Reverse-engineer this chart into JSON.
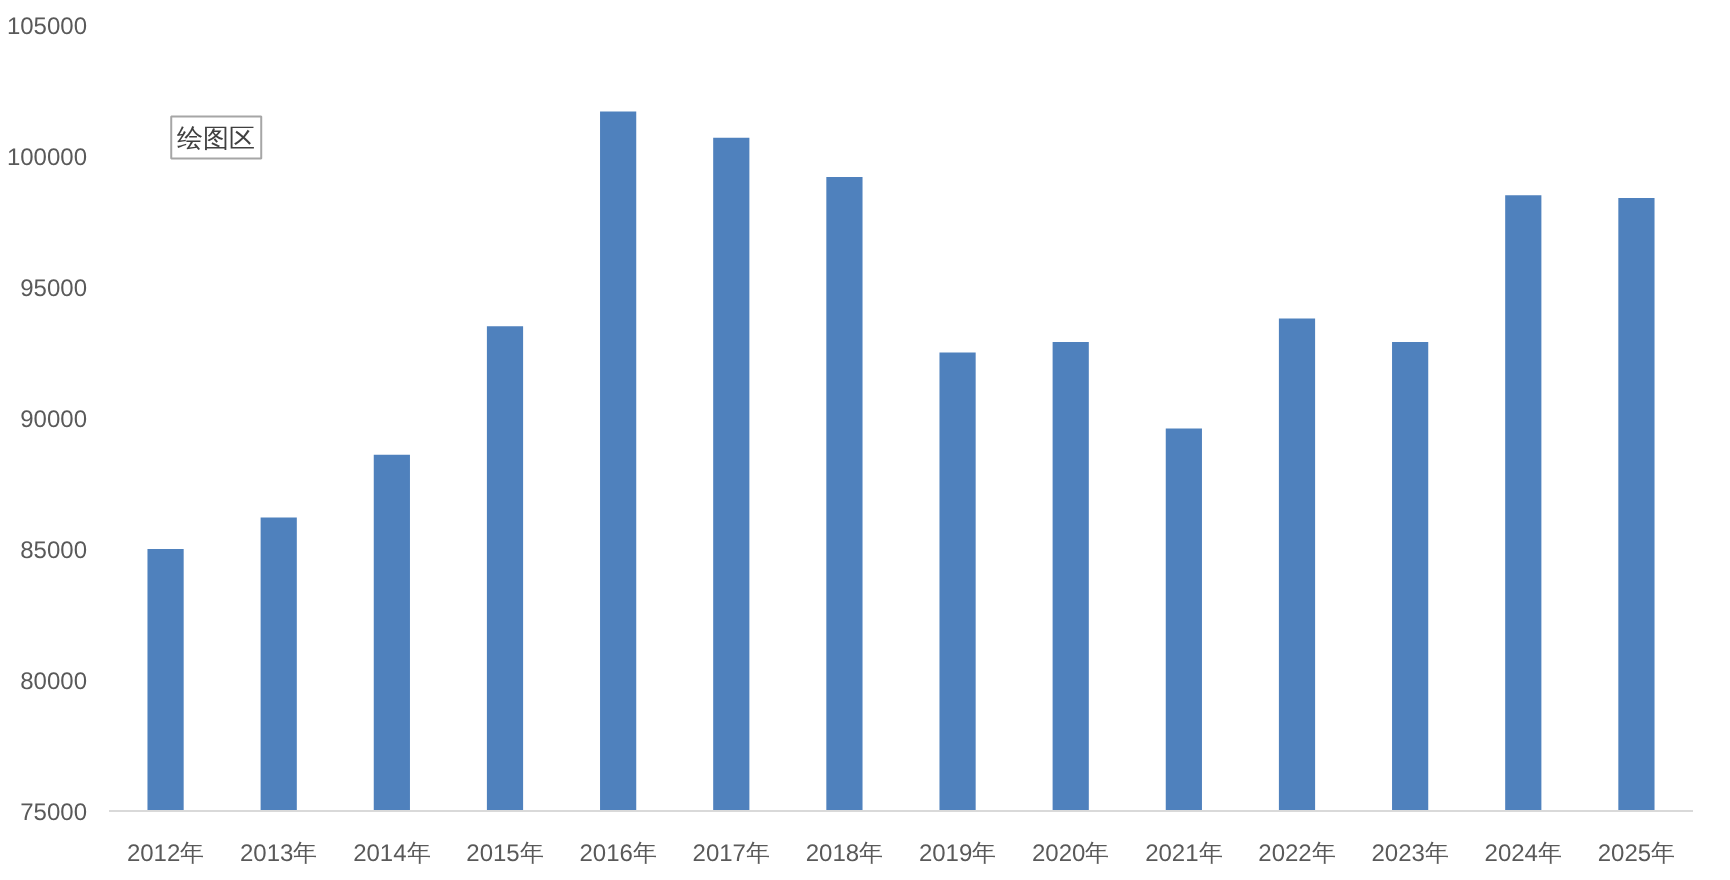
{
  "chart_data": {
    "type": "bar",
    "categories": [
      "2012年",
      "2013年",
      "2014年",
      "2015年",
      "2016年",
      "2017年",
      "2018年",
      "2019年",
      "2020年",
      "2021年",
      "2022年",
      "2023年",
      "2024年",
      "2025年"
    ],
    "values": [
      85000,
      86200,
      88600,
      93500,
      101700,
      100700,
      99200,
      92500,
      92900,
      89600,
      93800,
      92900,
      98500,
      98400
    ],
    "color": "#4f81bd",
    "ylim": [
      75000,
      105000
    ],
    "yticks": [
      75000,
      80000,
      85000,
      90000,
      95000,
      100000,
      105000
    ],
    "annotations": [
      "绘图区"
    ]
  }
}
